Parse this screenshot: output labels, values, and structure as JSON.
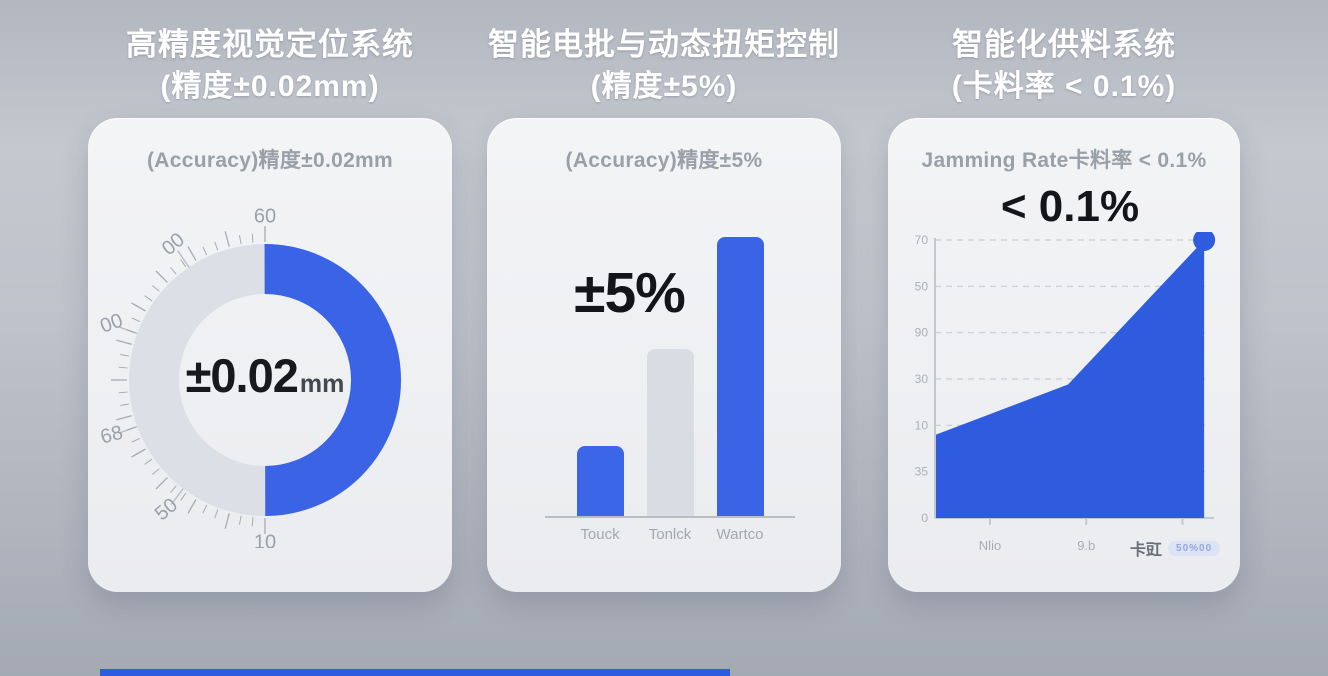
{
  "background": {
    "footer_bar_color": "#2E5CE0"
  },
  "columns": [
    {
      "title_line1": "高精度视觉定位系统",
      "title_line2": "(精度±0.02mm)",
      "card_header": "(Accuracy)精度±0.02mm"
    },
    {
      "title_line1": "智能电批与动态扭矩控制",
      "title_line2": "(精度±5%)",
      "card_header": "(Accuracy)精度±5%"
    },
    {
      "title_line1": "智能化供料系统",
      "title_line2": "(卡料率 < 0.1%)",
      "card_header": "Jamming Rate卡料率 < 0.1%"
    }
  ],
  "chart_data": [
    {
      "type": "gauge",
      "title": "(Accuracy)精度±0.02mm",
      "center_value": "±0.02",
      "center_unit": "mm",
      "fill_fraction": 0.5,
      "fill_color": "#3A63E6",
      "track_color": "#DCDFE5",
      "tick_color": "#9aa0a8",
      "scale_labels": [
        {
          "text": "60",
          "angle": 0,
          "rot": 0
        },
        {
          "text": "00",
          "angle": -34,
          "rot": -40
        },
        {
          "text": "00",
          "angle": -70,
          "rot": -20
        },
        {
          "text": "68",
          "angle": -110,
          "rot": -15
        },
        {
          "text": "50",
          "angle": -143,
          "rot": -40
        },
        {
          "text": "10",
          "angle": -180,
          "rot": 0
        }
      ],
      "radial_line_angles": [
        -34,
        -70,
        -110,
        -143
      ]
    },
    {
      "type": "bar",
      "annotation": "±5%",
      "categories": [
        "Touck",
        "Tonlck",
        "Wartco"
      ],
      "values": [
        25,
        60,
        100
      ],
      "bar_colors": [
        "#3C66E8",
        "#D9DCE2",
        "#3B63E6"
      ],
      "ylim": [
        0,
        100
      ],
      "grid": false
    },
    {
      "type": "area",
      "annotation": "< 0.1%",
      "y_tick_labels": [
        "70",
        "50",
        "90",
        "30",
        "10",
        "35",
        "0"
      ],
      "x_tick_labels": [
        "Nlio",
        "9.b"
      ],
      "x_category": "卡豇",
      "x_badge": "50%00",
      "points": [
        {
          "x": 0.0,
          "v": 0.3
        },
        {
          "x": 0.48,
          "v": 0.48
        },
        {
          "x": 0.975,
          "v": 1.0
        }
      ],
      "area_color": "#2F5CDF",
      "end_dot": true,
      "grid": "dashed-horizontal",
      "axis_color": "#c3c7ce",
      "label_color": "#aab0b8"
    }
  ]
}
